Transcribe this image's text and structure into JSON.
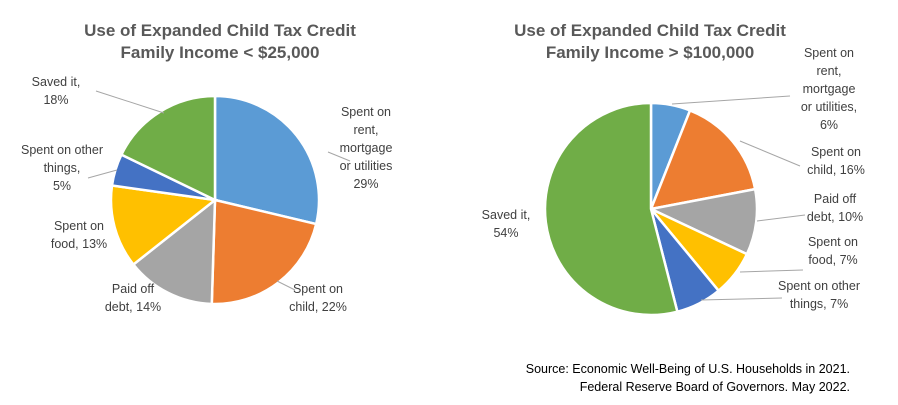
{
  "chart_data": [
    {
      "type": "pie",
      "title": "Use of Expanded Child Tax Credit",
      "subtitle": "Family Income < $25,000",
      "slices": [
        {
          "label_lines": [
            "Spent on",
            "rent,",
            "mortgage",
            "or utilities",
            "29%"
          ],
          "value": 29,
          "color": "#5B9BD5"
        },
        {
          "label_lines": [
            "Spent on",
            "child, 22%"
          ],
          "value": 22,
          "color": "#ED7D31"
        },
        {
          "label_lines": [
            "Paid off",
            "debt, 14%"
          ],
          "value": 14,
          "color": "#A5A5A5"
        },
        {
          "label_lines": [
            "Spent on",
            "food, 13%"
          ],
          "value": 13,
          "color": "#FFC000"
        },
        {
          "label_lines": [
            "Spent on other",
            "things,",
            "5%"
          ],
          "value": 5,
          "color": "#4472C4"
        },
        {
          "label_lines": [
            "Saved it,",
            "18%"
          ],
          "value": 18,
          "color": "#70AD47"
        }
      ]
    },
    {
      "type": "pie",
      "title": "Use of Expanded Child Tax Credit",
      "subtitle": "Family Income > $100,000",
      "slices": [
        {
          "label_lines": [
            "Spent on",
            "rent,",
            "mortgage",
            "or utilities,",
            "6%"
          ],
          "value": 6,
          "color": "#5B9BD5"
        },
        {
          "label_lines": [
            "Spent on",
            "child, 16%"
          ],
          "value": 16,
          "color": "#ED7D31"
        },
        {
          "label_lines": [
            "Paid off",
            "debt, 10%"
          ],
          "value": 10,
          "color": "#A5A5A5"
        },
        {
          "label_lines": [
            "Spent on",
            "food, 7%"
          ],
          "value": 7,
          "color": "#FFC000"
        },
        {
          "label_lines": [
            "Spent on other",
            "things, 7%"
          ],
          "value": 7,
          "color": "#4472C4"
        },
        {
          "label_lines": [
            "Saved it,",
            "54%"
          ],
          "value": 54,
          "color": "#70AD47"
        }
      ]
    }
  ],
  "source": {
    "line1": "Source: Economic Well-Being of U.S. Households in 2021.",
    "line2": "Federal Reserve Board of Governors. May 2022."
  }
}
